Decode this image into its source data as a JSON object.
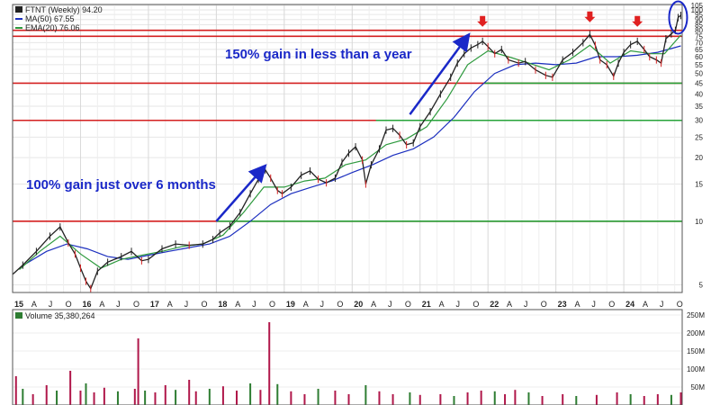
{
  "chart_data": {
    "type": "line",
    "ticker_label": "FTNT (Weekly) 94.20",
    "legend": [
      {
        "text": "MA(50) 67.55",
        "color": "#1c2fbf"
      },
      {
        "text": "EMA(20) 76.06",
        "color": "#2e9a3e"
      }
    ],
    "volume_label": "Volume 35,380,264",
    "price_scale": "log",
    "ylim": [
      4.6,
      106
    ],
    "y_ticks": [
      105,
      100,
      95,
      90,
      85,
      80,
      75,
      70,
      65,
      60,
      55,
      50,
      45,
      40,
      35,
      30,
      25,
      20,
      15,
      10,
      5
    ],
    "xlim": [
      2015.0,
      2024.86
    ],
    "x_ticks": [
      {
        "x": 2015.0,
        "label": "15",
        "year": true
      },
      {
        "x": 2015.25,
        "label": "A"
      },
      {
        "x": 2015.5,
        "label": "J"
      },
      {
        "x": 2015.75,
        "label": "O"
      },
      {
        "x": 2016.0,
        "label": "16",
        "year": true
      },
      {
        "x": 2016.25,
        "label": "A"
      },
      {
        "x": 2016.5,
        "label": "J"
      },
      {
        "x": 2016.75,
        "label": "O"
      },
      {
        "x": 2017.0,
        "label": "17",
        "year": true
      },
      {
        "x": 2017.25,
        "label": "A"
      },
      {
        "x": 2017.5,
        "label": "J"
      },
      {
        "x": 2017.75,
        "label": "O"
      },
      {
        "x": 2018.0,
        "label": "18",
        "year": true
      },
      {
        "x": 2018.25,
        "label": "A"
      },
      {
        "x": 2018.5,
        "label": "J"
      },
      {
        "x": 2018.75,
        "label": "O"
      },
      {
        "x": 2019.0,
        "label": "19",
        "year": true
      },
      {
        "x": 2019.25,
        "label": "A"
      },
      {
        "x": 2019.5,
        "label": "J"
      },
      {
        "x": 2019.75,
        "label": "O"
      },
      {
        "x": 2020.0,
        "label": "20",
        "year": true
      },
      {
        "x": 2020.25,
        "label": "A"
      },
      {
        "x": 2020.5,
        "label": "J"
      },
      {
        "x": 2020.75,
        "label": "O"
      },
      {
        "x": 2021.0,
        "label": "21",
        "year": true
      },
      {
        "x": 2021.25,
        "label": "A"
      },
      {
        "x": 2021.5,
        "label": "J"
      },
      {
        "x": 2021.75,
        "label": "O"
      },
      {
        "x": 2022.0,
        "label": "22",
        "year": true
      },
      {
        "x": 2022.25,
        "label": "A"
      },
      {
        "x": 2022.5,
        "label": "J"
      },
      {
        "x": 2022.75,
        "label": "O"
      },
      {
        "x": 2023.0,
        "label": "23",
        "year": true
      },
      {
        "x": 2023.25,
        "label": "A"
      },
      {
        "x": 2023.5,
        "label": "J"
      },
      {
        "x": 2023.75,
        "label": "O"
      },
      {
        "x": 2024.0,
        "label": "24",
        "year": true
      },
      {
        "x": 2024.25,
        "label": "A"
      },
      {
        "x": 2024.5,
        "label": "J"
      },
      {
        "x": 2024.75,
        "label": "O"
      }
    ],
    "price": [
      [
        2015.0,
        5.6
      ],
      [
        2015.15,
        6.2
      ],
      [
        2015.35,
        7.2
      ],
      [
        2015.55,
        8.5
      ],
      [
        2015.7,
        9.4
      ],
      [
        2015.82,
        7.9
      ],
      [
        2015.92,
        7.0
      ],
      [
        2016.0,
        6.0
      ],
      [
        2016.08,
        5.2
      ],
      [
        2016.15,
        4.8
      ],
      [
        2016.25,
        5.8
      ],
      [
        2016.4,
        6.4
      ],
      [
        2016.6,
        6.8
      ],
      [
        2016.75,
        7.2
      ],
      [
        2016.9,
        6.5
      ],
      [
        2017.0,
        6.6
      ],
      [
        2017.2,
        7.4
      ],
      [
        2017.4,
        7.8
      ],
      [
        2017.6,
        7.7
      ],
      [
        2017.8,
        7.8
      ],
      [
        2017.95,
        8.2
      ],
      [
        2018.05,
        8.8
      ],
      [
        2018.2,
        9.5
      ],
      [
        2018.35,
        11.0
      ],
      [
        2018.5,
        13.5
      ],
      [
        2018.62,
        15.8
      ],
      [
        2018.72,
        17.5
      ],
      [
        2018.8,
        16.0
      ],
      [
        2018.9,
        14.0
      ],
      [
        2018.97,
        13.5
      ],
      [
        2019.1,
        14.5
      ],
      [
        2019.25,
        16.5
      ],
      [
        2019.38,
        17.3
      ],
      [
        2019.5,
        15.8
      ],
      [
        2019.62,
        15.2
      ],
      [
        2019.75,
        16.0
      ],
      [
        2019.85,
        19.0
      ],
      [
        2019.95,
        21.0
      ],
      [
        2020.05,
        22.5
      ],
      [
        2020.15,
        19.5
      ],
      [
        2020.2,
        15.0
      ],
      [
        2020.28,
        18.5
      ],
      [
        2020.4,
        22.0
      ],
      [
        2020.5,
        27.0
      ],
      [
        2020.6,
        27.5
      ],
      [
        2020.7,
        25.5
      ],
      [
        2020.8,
        23.0
      ],
      [
        2020.9,
        23.5
      ],
      [
        2021.0,
        28.0
      ],
      [
        2021.15,
        33.0
      ],
      [
        2021.3,
        40.0
      ],
      [
        2021.45,
        48.0
      ],
      [
        2021.55,
        56.0
      ],
      [
        2021.65,
        62.0
      ],
      [
        2021.75,
        66.0
      ],
      [
        2021.85,
        68.5
      ],
      [
        2021.92,
        71.0
      ],
      [
        2022.0,
        67.0
      ],
      [
        2022.1,
        62.0
      ],
      [
        2022.2,
        65.0
      ],
      [
        2022.3,
        58.0
      ],
      [
        2022.45,
        56.0
      ],
      [
        2022.55,
        57.0
      ],
      [
        2022.7,
        52.0
      ],
      [
        2022.85,
        49.0
      ],
      [
        2022.95,
        48.0
      ],
      [
        2023.1,
        58.0
      ],
      [
        2023.25,
        63.0
      ],
      [
        2023.4,
        70.0
      ],
      [
        2023.5,
        76.5
      ],
      [
        2023.58,
        68.0
      ],
      [
        2023.65,
        58.0
      ],
      [
        2023.75,
        55.0
      ],
      [
        2023.85,
        48.5
      ],
      [
        2023.92,
        56.0
      ],
      [
        2024.0,
        63.0
      ],
      [
        2024.1,
        68.5
      ],
      [
        2024.2,
        71.0
      ],
      [
        2024.3,
        65.0
      ],
      [
        2024.38,
        60.0
      ],
      [
        2024.48,
        58.0
      ],
      [
        2024.55,
        56.0
      ],
      [
        2024.62,
        73.0
      ],
      [
        2024.7,
        77.0
      ],
      [
        2024.76,
        80.0
      ],
      [
        2024.8,
        92.0
      ],
      [
        2024.84,
        94.2
      ]
    ],
    "ma50": [
      [
        2015.2,
        6.3
      ],
      [
        2015.5,
        7.2
      ],
      [
        2015.8,
        7.8
      ],
      [
        2016.1,
        7.4
      ],
      [
        2016.4,
        6.8
      ],
      [
        2016.7,
        6.6
      ],
      [
        2017.0,
        6.9
      ],
      [
        2017.3,
        7.2
      ],
      [
        2017.6,
        7.5
      ],
      [
        2017.9,
        7.8
      ],
      [
        2018.2,
        8.5
      ],
      [
        2018.5,
        10.0
      ],
      [
        2018.8,
        12.0
      ],
      [
        2019.1,
        13.5
      ],
      [
        2019.4,
        14.5
      ],
      [
        2019.7,
        15.5
      ],
      [
        2020.0,
        17.0
      ],
      [
        2020.3,
        18.5
      ],
      [
        2020.6,
        20.5
      ],
      [
        2020.9,
        22.0
      ],
      [
        2021.2,
        25.0
      ],
      [
        2021.5,
        31.0
      ],
      [
        2021.8,
        41.0
      ],
      [
        2022.1,
        50.0
      ],
      [
        2022.4,
        55.0
      ],
      [
        2022.7,
        56.0
      ],
      [
        2023.0,
        55.0
      ],
      [
        2023.3,
        56.0
      ],
      [
        2023.6,
        60.0
      ],
      [
        2023.9,
        60.0
      ],
      [
        2024.2,
        61.0
      ],
      [
        2024.5,
        63.0
      ],
      [
        2024.84,
        67.55
      ]
    ],
    "ema20": [
      [
        2015.1,
        5.9
      ],
      [
        2015.4,
        7.2
      ],
      [
        2015.7,
        8.5
      ],
      [
        2016.0,
        7.0
      ],
      [
        2016.3,
        6.0
      ],
      [
        2016.6,
        6.6
      ],
      [
        2016.9,
        6.9
      ],
      [
        2017.2,
        7.2
      ],
      [
        2017.5,
        7.6
      ],
      [
        2017.8,
        7.8
      ],
      [
        2018.1,
        8.6
      ],
      [
        2018.4,
        11.0
      ],
      [
        2018.7,
        14.5
      ],
      [
        2019.0,
        14.5
      ],
      [
        2019.3,
        15.5
      ],
      [
        2019.6,
        16.0
      ],
      [
        2019.9,
        18.5
      ],
      [
        2020.2,
        19.5
      ],
      [
        2020.5,
        23.0
      ],
      [
        2020.8,
        24.5
      ],
      [
        2021.1,
        28.0
      ],
      [
        2021.4,
        38.0
      ],
      [
        2021.7,
        55.0
      ],
      [
        2022.0,
        64.0
      ],
      [
        2022.3,
        60.0
      ],
      [
        2022.6,
        56.0
      ],
      [
        2022.9,
        52.0
      ],
      [
        2023.2,
        58.0
      ],
      [
        2023.5,
        68.0
      ],
      [
        2023.8,
        56.0
      ],
      [
        2024.1,
        64.0
      ],
      [
        2024.4,
        62.0
      ],
      [
        2024.6,
        62.0
      ],
      [
        2024.84,
        76.06
      ]
    ],
    "resistance_lines": [
      80,
      75,
      45,
      30,
      10
    ],
    "support_lines": [
      45,
      30,
      10
    ],
    "volume_scale": {
      "max": 250,
      "unit": "M",
      "ticks": [
        250,
        200,
        150,
        100,
        50
      ]
    },
    "volume": [
      [
        2015.05,
        80
      ],
      [
        2015.15,
        45
      ],
      [
        2015.3,
        30
      ],
      [
        2015.5,
        55
      ],
      [
        2015.65,
        40
      ],
      [
        2015.85,
        95
      ],
      [
        2016.0,
        40
      ],
      [
        2016.08,
        60
      ],
      [
        2016.2,
        35
      ],
      [
        2016.35,
        48
      ],
      [
        2016.55,
        38
      ],
      [
        2016.8,
        45
      ],
      [
        2016.85,
        185
      ],
      [
        2016.95,
        40
      ],
      [
        2017.1,
        35
      ],
      [
        2017.25,
        55
      ],
      [
        2017.4,
        42
      ],
      [
        2017.6,
        70
      ],
      [
        2017.7,
        38
      ],
      [
        2017.9,
        45
      ],
      [
        2018.1,
        52
      ],
      [
        2018.3,
        40
      ],
      [
        2018.5,
        60
      ],
      [
        2018.65,
        42
      ],
      [
        2018.78,
        230
      ],
      [
        2018.9,
        58
      ],
      [
        2019.1,
        38
      ],
      [
        2019.3,
        30
      ],
      [
        2019.5,
        45
      ],
      [
        2019.75,
        40
      ],
      [
        2019.95,
        30
      ],
      [
        2020.2,
        55
      ],
      [
        2020.4,
        38
      ],
      [
        2020.6,
        30
      ],
      [
        2020.85,
        35
      ],
      [
        2021.0,
        28
      ],
      [
        2021.3,
        30
      ],
      [
        2021.5,
        25
      ],
      [
        2021.7,
        35
      ],
      [
        2021.9,
        40
      ],
      [
        2022.1,
        38
      ],
      [
        2022.25,
        30
      ],
      [
        2022.4,
        42
      ],
      [
        2022.6,
        35
      ],
      [
        2022.8,
        25
      ],
      [
        2023.1,
        30
      ],
      [
        2023.3,
        25
      ],
      [
        2023.6,
        28
      ],
      [
        2023.9,
        35
      ],
      [
        2024.1,
        30
      ],
      [
        2024.3,
        25
      ],
      [
        2024.5,
        30
      ],
      [
        2024.7,
        28
      ],
      [
        2024.84,
        35
      ]
    ],
    "annotations": [
      {
        "text": "100% gain just over 6 months",
        "x": 2016.8,
        "y": 14.5,
        "color": "#1a28c8"
      },
      {
        "text": "150% gain in less than a year",
        "x": 2019.35,
        "y": 60,
        "color": "#1a28c8"
      }
    ],
    "blue_arrows": [
      {
        "from": [
          2018.0,
          10.0
        ],
        "to": [
          2018.7,
          18.0
        ]
      },
      {
        "from": [
          2020.85,
          32.0
        ],
        "to": [
          2021.7,
          75.0
        ]
      }
    ],
    "red_markers": [
      {
        "x": 2021.92,
        "y": 80
      },
      {
        "x": 2023.5,
        "y": 84
      },
      {
        "x": 2024.2,
        "y": 80
      }
    ],
    "circle_highlight": {
      "x": 2024.8,
      "y": 92
    }
  }
}
